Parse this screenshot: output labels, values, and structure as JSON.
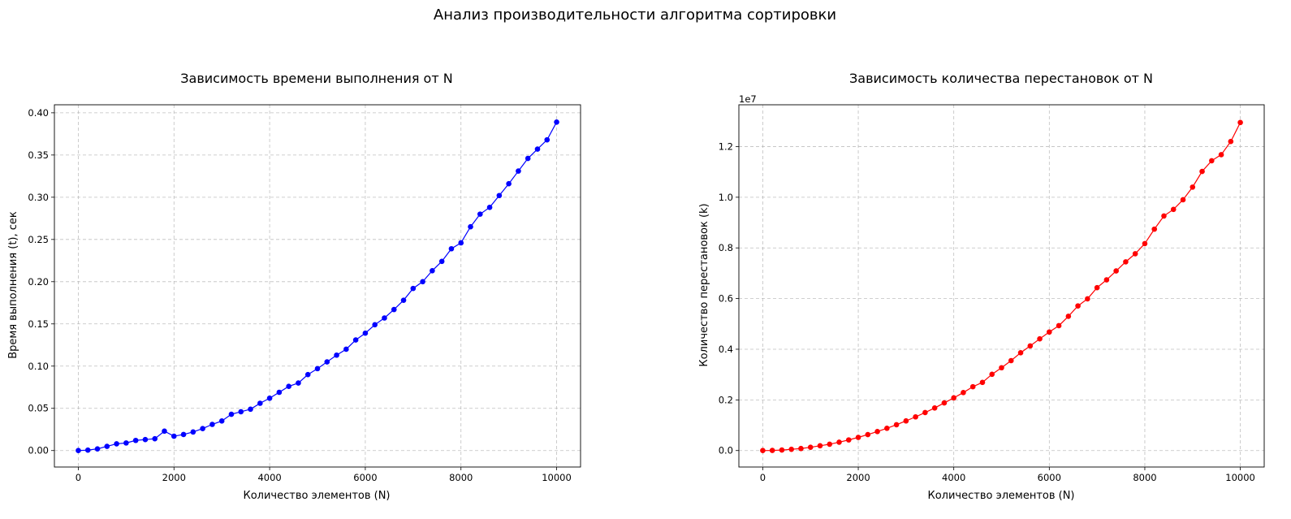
{
  "figure": {
    "title": "Анализ производительности алгоритма сортировки"
  },
  "chart_data": [
    {
      "type": "line",
      "title": "Зависимость времени выполнения от N",
      "xlabel": "Количество элементов (N)",
      "ylabel": "Время выполнения (t), сек",
      "xlim": [
        -500,
        10500
      ],
      "ylim": [
        -0.0195,
        0.4095
      ],
      "xticks": [
        0,
        2000,
        4000,
        6000,
        8000,
        10000
      ],
      "xtick_labels": [
        "0",
        "2000",
        "4000",
        "6000",
        "8000",
        "10000"
      ],
      "yticks": [
        0,
        0.05,
        0.1,
        0.15,
        0.2,
        0.25,
        0.3,
        0.35,
        0.4
      ],
      "ytick_labels": [
        "0.00",
        "0.05",
        "0.10",
        "0.15",
        "0.20",
        "0.25",
        "0.30",
        "0.35",
        "0.40"
      ],
      "grid": true,
      "color": "#0000ff",
      "marker": "circle",
      "x": [
        0,
        200,
        400,
        600,
        800,
        1000,
        1200,
        1400,
        1600,
        1800,
        2000,
        2200,
        2400,
        2600,
        2800,
        3000,
        3200,
        3400,
        3600,
        3800,
        4000,
        4200,
        4400,
        4600,
        4800,
        5000,
        5200,
        5400,
        5600,
        5800,
        6000,
        6200,
        6400,
        6600,
        6800,
        7000,
        7200,
        7400,
        7600,
        7800,
        8000,
        8200,
        8400,
        8600,
        8800,
        9000,
        9200,
        9400,
        9600,
        9800,
        10000
      ],
      "y": [
        0.0,
        0.0005,
        0.002,
        0.005,
        0.008,
        0.009,
        0.012,
        0.013,
        0.014,
        0.023,
        0.017,
        0.019,
        0.022,
        0.026,
        0.031,
        0.035,
        0.043,
        0.046,
        0.049,
        0.056,
        0.062,
        0.069,
        0.076,
        0.08,
        0.09,
        0.097,
        0.105,
        0.113,
        0.12,
        0.131,
        0.139,
        0.149,
        0.157,
        0.167,
        0.178,
        0.192,
        0.2,
        0.213,
        0.224,
        0.239,
        0.246,
        0.265,
        0.28,
        0.288,
        0.302,
        0.316,
        0.331,
        0.346,
        0.357,
        0.368,
        0.389
      ]
    },
    {
      "type": "line",
      "title": "Зависимость количества перестановок от N",
      "xlabel": "Количество элементов (N)",
      "ylabel": "Количество перестановок (k)",
      "offset_label": "1e7",
      "xlim": [
        -500,
        10500
      ],
      "ylim": [
        -0.065,
        1.365
      ],
      "xticks": [
        0,
        2000,
        4000,
        6000,
        8000,
        10000
      ],
      "xtick_labels": [
        "0",
        "2000",
        "4000",
        "6000",
        "8000",
        "10000"
      ],
      "yticks": [
        0,
        0.2,
        0.4,
        0.6,
        0.8,
        1.0,
        1.2
      ],
      "ytick_labels": [
        "0.0",
        "0.2",
        "0.4",
        "0.6",
        "0.8",
        "1.0",
        "1.2"
      ],
      "grid": true,
      "color": "#ff0000",
      "marker": "circle",
      "x": [
        0,
        200,
        400,
        600,
        800,
        1000,
        1200,
        1400,
        1600,
        1800,
        2000,
        2200,
        2400,
        2600,
        2800,
        3000,
        3200,
        3400,
        3600,
        3800,
        4000,
        4200,
        4400,
        4600,
        4800,
        5000,
        5200,
        5400,
        5600,
        5800,
        6000,
        6200,
        6400,
        6600,
        6800,
        7000,
        7200,
        7400,
        7600,
        7800,
        8000,
        8200,
        8400,
        8600,
        8800,
        9000,
        9200,
        9400,
        9600,
        9800,
        10000
      ],
      "y": [
        0.0,
        0.0005,
        0.002,
        0.005,
        0.008,
        0.013,
        0.019,
        0.025,
        0.033,
        0.042,
        0.052,
        0.063,
        0.075,
        0.088,
        0.102,
        0.117,
        0.133,
        0.15,
        0.168,
        0.188,
        0.208,
        0.229,
        0.252,
        0.269,
        0.301,
        0.327,
        0.355,
        0.386,
        0.413,
        0.441,
        0.468,
        0.493,
        0.53,
        0.571,
        0.599,
        0.643,
        0.674,
        0.709,
        0.745,
        0.777,
        0.817,
        0.874,
        0.926,
        0.952,
        0.99,
        1.04,
        1.102,
        1.144,
        1.168,
        1.22,
        1.295
      ]
    }
  ]
}
